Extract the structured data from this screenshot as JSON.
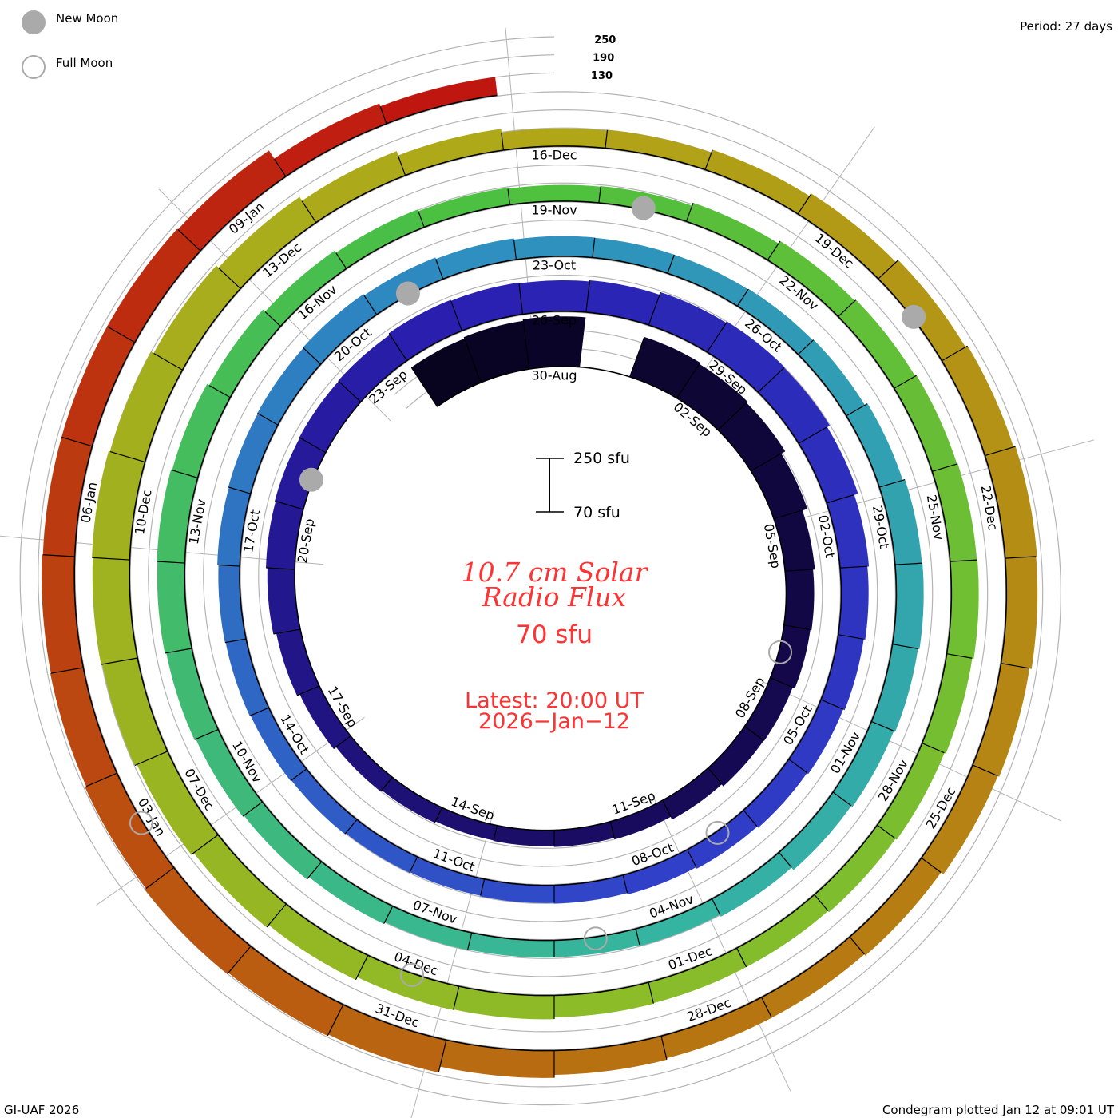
{
  "legend": {
    "new_moon": "New Moon",
    "full_moon": "Full Moon",
    "new_moon_color": "#aaaaaa",
    "full_moon_color": "#aaaaaa"
  },
  "period_label": "Period: 27 days",
  "footer_left": "GI-UAF 2026",
  "footer_right": "Condegram plotted Jan 12 at 09:01 UT",
  "center": {
    "title_line1": "10.7 cm Solar",
    "title_line2": "Radio Flux",
    "baseline_label": "70 sfu",
    "latest_line1": "Latest: 20:00 UT",
    "latest_line2": "2026−Jan−12",
    "scale_top": "250 sfu",
    "scale_bottom": "70 sfu"
  },
  "chart_data": {
    "type": "condegram-spiral",
    "title": "10.7 cm Solar Radio Flux",
    "period_days": 27,
    "units": "sfu",
    "baseline_sfu": 70,
    "scale_max_sfu": 250,
    "reference_levels": [
      130,
      190,
      250
    ],
    "reference_level_labels": [
      "130",
      "190",
      "250"
    ],
    "top_reference_date": "2025-08-30",
    "start_date": "2025-08-28",
    "flux": [
      225,
      230,
      235,
      null,
      210,
      205,
      200,
      185,
      168,
      162,
      158,
      150,
      148,
      140,
      130,
      125,
      122,
      120,
      125,
      130,
      140,
      150,
      160,
      165,
      168,
      170,
      172,
      178,
      175,
      172,
      176,
      185,
      190,
      188,
      178,
      165,
      160,
      155,
      150,
      145,
      140,
      135,
      130,
      128,
      126,
      128,
      132,
      135,
      138,
      140,
      144,
      146,
      148,
      150,
      145,
      140,
      136,
      135,
      135,
      137,
      140,
      150,
      158,
      160,
      155,
      150,
      145,
      135,
      128,
      125,
      126,
      128,
      135,
      145,
      150,
      155,
      160,
      162,
      158,
      150,
      140,
      132,
      126,
      123,
      125,
      135,
      145,
      150,
      155,
      158,
      160,
      155,
      150,
      145,
      140,
      140,
      142,
      148,
      150,
      160,
      170,
      180,
      188,
      192,
      195,
      190,
      180,
      170,
      155,
      140,
      128,
      130,
      140,
      150,
      160,
      168,
      175,
      172,
      165,
      160,
      150,
      145,
      145,
      150,
      160,
      180,
      185,
      190,
      185,
      180,
      178,
      175,
      175,
      175,
      172,
      140,
      130
    ],
    "date_labels": [
      "30-Aug",
      "02-Sep",
      "05-Sep",
      "08-Sep",
      "11-Sep",
      "14-Sep",
      "17-Sep",
      "20-Sep",
      "23-Sep",
      "26-Sep",
      "29-Sep",
      "02-Oct",
      "05-Oct",
      "08-Oct",
      "11-Oct",
      "14-Oct",
      "17-Oct",
      "20-Oct",
      "23-Oct",
      "26-Oct",
      "29-Oct",
      "01-Nov",
      "04-Nov",
      "07-Nov",
      "10-Nov",
      "13-Nov",
      "16-Nov",
      "19-Nov",
      "22-Nov",
      "25-Nov",
      "28-Nov",
      "01-Dec",
      "04-Dec",
      "07-Dec",
      "10-Dec",
      "13-Dec",
      "16-Dec",
      "19-Dec",
      "22-Dec",
      "25-Dec",
      "28-Dec",
      "31-Dec",
      "03-Jan",
      "06-Jan",
      "09-Jan"
    ],
    "date_label_step_days": 3,
    "new_moons": [
      "2025-09-21",
      "2025-10-21",
      "2025-11-20",
      "2025-12-20"
    ],
    "full_moons": [
      "2025-09-07",
      "2025-10-07",
      "2025-11-05",
      "2025-12-04",
      "2026-01-03"
    ],
    "color_ramp": [
      "#080420",
      "#180a5a",
      "#2a1fb0",
      "#3040c8",
      "#2e8ec0",
      "#35b5a0",
      "#4cc040",
      "#8cbc28",
      "#b0a818",
      "#b87010",
      "#c01010"
    ]
  }
}
